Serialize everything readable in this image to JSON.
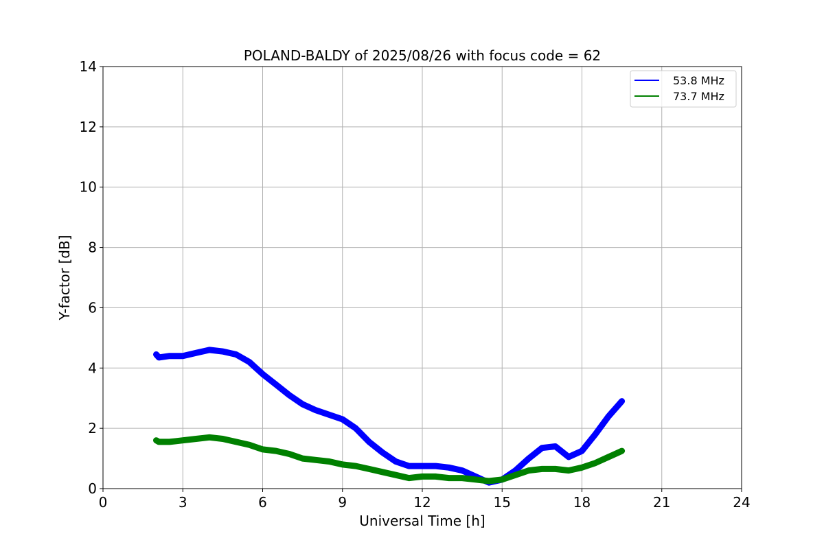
{
  "chart_data": {
    "type": "line",
    "title": "POLAND-BALDY of 2025/08/26 with focus code = 62",
    "xlabel": "Universal Time [h]",
    "ylabel": "Y-factor [dB]",
    "xlim": [
      0,
      24
    ],
    "ylim": [
      0,
      14
    ],
    "xticks": [
      0,
      3,
      6,
      9,
      12,
      15,
      18,
      21,
      24
    ],
    "yticks": [
      0,
      2,
      4,
      6,
      8,
      10,
      12,
      14
    ],
    "grid": true,
    "legend_position": "top-right",
    "series": [
      {
        "name": "53.8 MHz",
        "color": "#0000ff",
        "x": [
          2.0,
          2.1,
          2.5,
          3.0,
          3.5,
          4.0,
          4.5,
          5.0,
          5.5,
          6.0,
          6.5,
          7.0,
          7.5,
          8.0,
          8.5,
          9.0,
          9.5,
          10.0,
          10.5,
          11.0,
          11.5,
          12.0,
          12.5,
          13.0,
          13.5,
          14.0,
          14.5,
          15.0,
          15.5,
          16.0,
          16.5,
          17.0,
          17.5,
          18.0,
          18.5,
          19.0,
          19.5
        ],
        "values": [
          4.45,
          4.35,
          4.4,
          4.4,
          4.5,
          4.6,
          4.55,
          4.45,
          4.2,
          3.8,
          3.45,
          3.1,
          2.8,
          2.6,
          2.45,
          2.3,
          2.0,
          1.55,
          1.2,
          0.9,
          0.75,
          0.75,
          0.75,
          0.7,
          0.6,
          0.4,
          0.2,
          0.3,
          0.6,
          1.0,
          1.35,
          1.4,
          1.05,
          1.25,
          1.8,
          2.4,
          2.9
        ]
      },
      {
        "name": "73.7 MHz",
        "color": "#008000",
        "x": [
          2.0,
          2.1,
          2.5,
          3.0,
          3.5,
          4.0,
          4.5,
          5.0,
          5.5,
          6.0,
          6.5,
          7.0,
          7.5,
          8.0,
          8.5,
          9.0,
          9.5,
          10.0,
          10.5,
          11.0,
          11.5,
          12.0,
          12.5,
          13.0,
          13.5,
          14.0,
          14.5,
          15.0,
          15.5,
          16.0,
          16.5,
          17.0,
          17.5,
          18.0,
          18.5,
          19.0,
          19.5
        ],
        "values": [
          1.6,
          1.55,
          1.55,
          1.6,
          1.65,
          1.7,
          1.65,
          1.55,
          1.45,
          1.3,
          1.25,
          1.15,
          1.0,
          0.95,
          0.9,
          0.8,
          0.75,
          0.65,
          0.55,
          0.45,
          0.35,
          0.4,
          0.4,
          0.35,
          0.35,
          0.3,
          0.25,
          0.3,
          0.45,
          0.6,
          0.65,
          0.65,
          0.6,
          0.7,
          0.85,
          1.05,
          1.25
        ]
      }
    ]
  }
}
